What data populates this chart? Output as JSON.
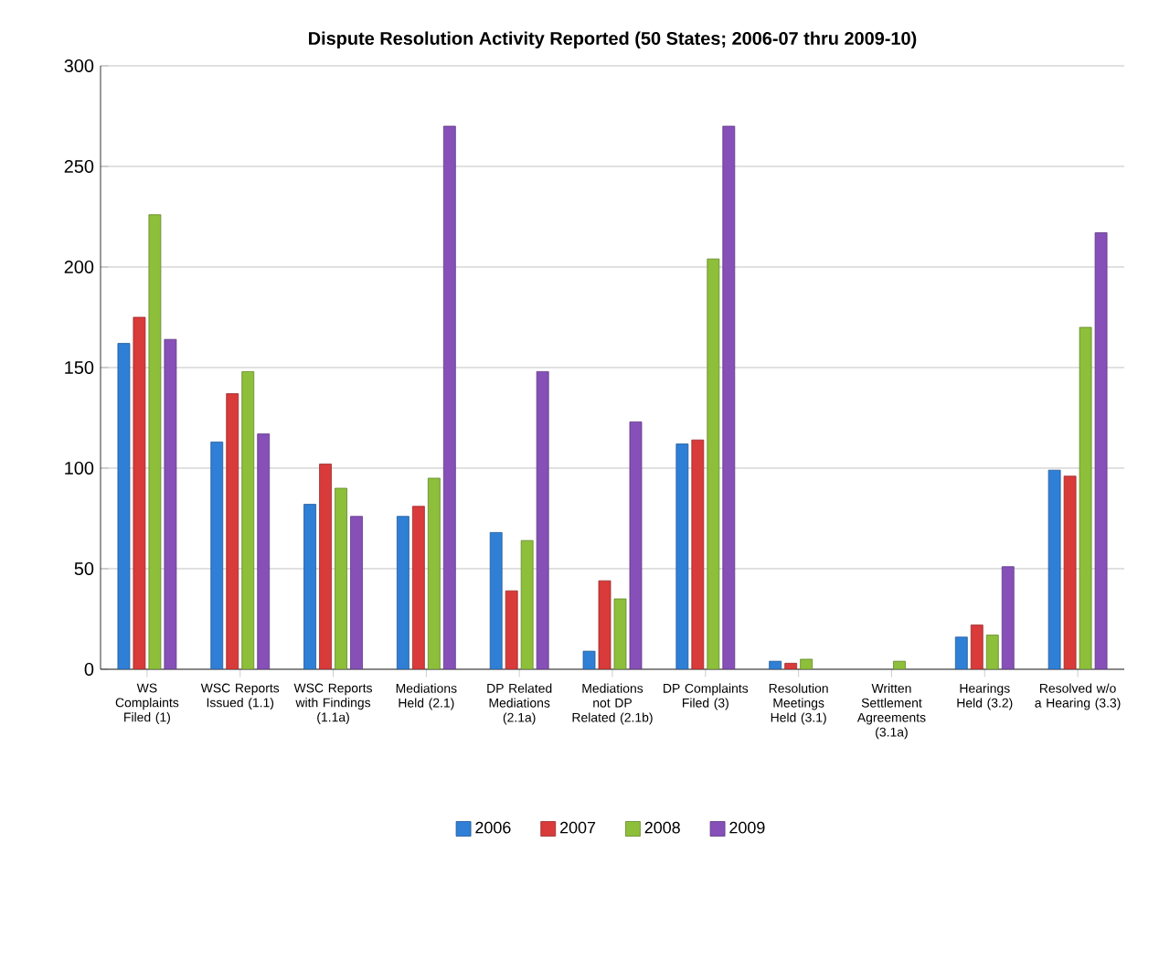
{
  "chart_data": {
    "type": "bar",
    "title": "Dispute Resolution Activity Reported (50 States;  2006-07 thru 2009-10)",
    "categories": [
      "WS Complaints Filed (1)",
      "WSC Reports Issued (1.1)",
      "WSC Reports with Findings (1.1a)",
      "Mediations Held (2.1)",
      "DP Related Mediations (2.1a)",
      "Mediations not DP Related (2.1b)",
      "DP Complaints Filed (3)",
      "Resolution Meetings Held (3.1)",
      "Written Settlement Agreements (3.1a)",
      "Hearings Held (3.2)",
      "Resolved w/o a Hearing (3.3)"
    ],
    "series": [
      {
        "name": "2006",
        "color": "#2f7fd6",
        "values": [
          162,
          113,
          82,
          76,
          68,
          9,
          112,
          4,
          null,
          16,
          99
        ]
      },
      {
        "name": "2007",
        "color": "#d93a3a",
        "values": [
          175,
          137,
          102,
          81,
          39,
          44,
          114,
          3,
          null,
          22,
          96
        ]
      },
      {
        "name": "2008",
        "color": "#8dbf3a",
        "values": [
          226,
          148,
          90,
          95,
          64,
          35,
          204,
          5,
          4,
          17,
          170
        ]
      },
      {
        "name": "2009",
        "color": "#8650b8",
        "values": [
          164,
          117,
          76,
          270,
          148,
          123,
          270,
          null,
          null,
          51,
          217
        ]
      }
    ],
    "ylim": [
      0,
      300
    ],
    "yticks": [
      0,
      50,
      100,
      150,
      200,
      250,
      300
    ],
    "grid": "y",
    "legend": "bottom"
  }
}
